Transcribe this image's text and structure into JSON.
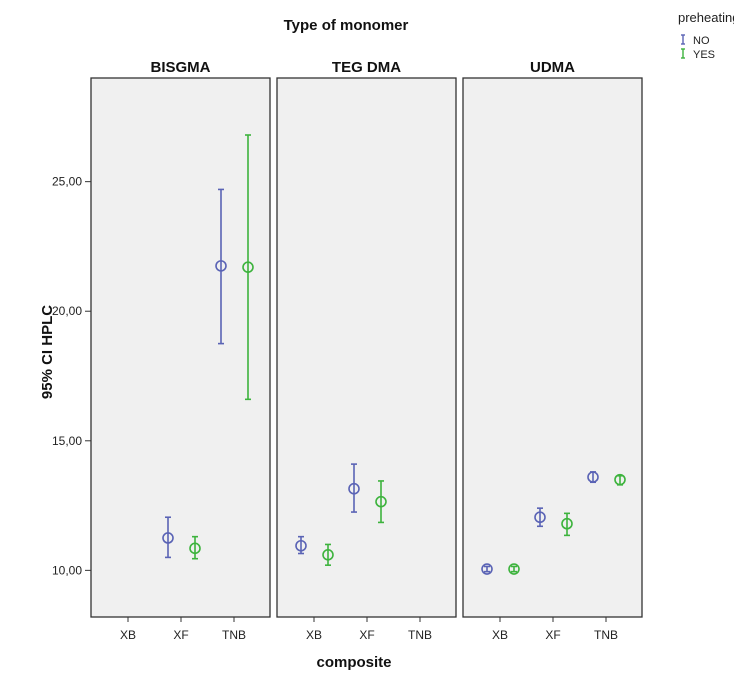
{
  "chart_data": {
    "type": "scatter",
    "subtype": "error-bar-panel",
    "facet_title": "Type of monomer",
    "xlabel": "composite",
    "ylabel": "95% CI HPLC",
    "ylim": [
      8.2,
      29.0
    ],
    "yticks": [
      "10,00",
      "15,00",
      "20,00",
      "25,00"
    ],
    "ytick_values": [
      10,
      15,
      20,
      25
    ],
    "categories": [
      "XB",
      "XF",
      "TNB"
    ],
    "grid": false,
    "legend": {
      "title": "preheating",
      "placement": "top-right",
      "entries": [
        {
          "label": "NO",
          "color": "#5a63b5"
        },
        {
          "label": "YES",
          "color": "#3db33d"
        }
      ]
    },
    "panels": [
      {
        "title": "BISGMA",
        "series": [
          {
            "name": "NO",
            "color": "#5a63b5",
            "points": [
              {
                "x": "XF",
                "mean": 11.25,
                "lower": 10.5,
                "upper": 12.05
              },
              {
                "x": "TNB",
                "mean": 21.75,
                "lower": 18.75,
                "upper": 24.7
              }
            ]
          },
          {
            "name": "YES",
            "color": "#3db33d",
            "points": [
              {
                "x": "XF",
                "mean": 10.85,
                "lower": 10.45,
                "upper": 11.3
              },
              {
                "x": "TNB",
                "mean": 21.7,
                "lower": 16.6,
                "upper": 26.8
              }
            ]
          }
        ]
      },
      {
        "title": "TEG DMA",
        "series": [
          {
            "name": "NO",
            "color": "#5a63b5",
            "points": [
              {
                "x": "XB",
                "mean": 10.95,
                "lower": 10.65,
                "upper": 11.3
              },
              {
                "x": "XF",
                "mean": 13.15,
                "lower": 12.25,
                "upper": 14.1
              }
            ]
          },
          {
            "name": "YES",
            "color": "#3db33d",
            "points": [
              {
                "x": "XB",
                "mean": 10.6,
                "lower": 10.2,
                "upper": 11.0
              },
              {
                "x": "XF",
                "mean": 12.65,
                "lower": 11.85,
                "upper": 13.45
              }
            ]
          }
        ]
      },
      {
        "title": "UDMA",
        "series": [
          {
            "name": "NO",
            "color": "#5a63b5",
            "points": [
              {
                "x": "XB",
                "mean": 10.05,
                "lower": 9.95,
                "upper": 10.15
              },
              {
                "x": "XF",
                "mean": 12.05,
                "lower": 11.7,
                "upper": 12.4
              },
              {
                "x": "TNB",
                "mean": 13.6,
                "lower": 13.4,
                "upper": 13.8
              }
            ]
          },
          {
            "name": "YES",
            "color": "#3db33d",
            "points": [
              {
                "x": "XB",
                "mean": 10.05,
                "lower": 9.95,
                "upper": 10.15
              },
              {
                "x": "XF",
                "mean": 11.8,
                "lower": 11.35,
                "upper": 12.2
              },
              {
                "x": "TNB",
                "mean": 13.5,
                "lower": 13.3,
                "upper": 13.65
              }
            ]
          }
        ]
      }
    ]
  }
}
